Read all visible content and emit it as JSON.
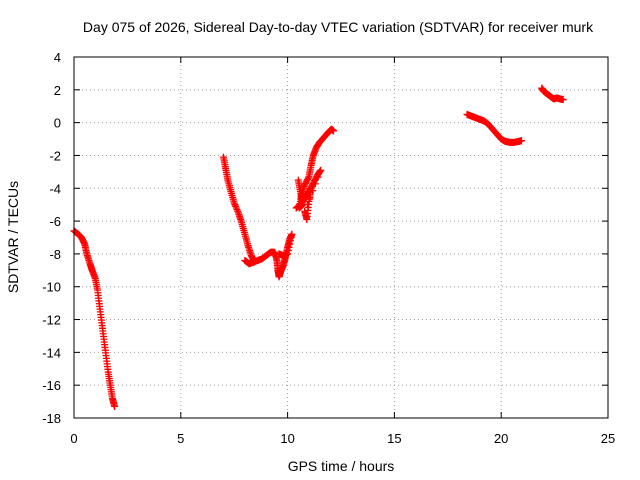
{
  "chart_data": {
    "type": "scatter",
    "title": "Day 075 of 2026, Sidereal Day-to-day VTEC variation (SDTVAR) for receiver murk",
    "xlabel": "GPS time / hours",
    "ylabel": "SDTVAR / TECUs",
    "xlim": [
      0,
      25
    ],
    "ylim": [
      -18,
      4
    ],
    "xticks": [
      0,
      5,
      10,
      15,
      20,
      25
    ],
    "yticks": [
      -18,
      -16,
      -14,
      -12,
      -10,
      -8,
      -6,
      -4,
      -2,
      0,
      2,
      4
    ],
    "grid": true,
    "marker": "plus",
    "color": "#ff0000",
    "segments": [
      {
        "points": [
          [
            0.0,
            -6.6
          ],
          [
            0.2,
            -6.8
          ],
          [
            0.35,
            -7.0
          ],
          [
            0.5,
            -7.4
          ],
          [
            0.6,
            -8.0
          ],
          [
            0.75,
            -8.6
          ],
          [
            0.85,
            -9.0
          ],
          [
            1.0,
            -9.5
          ],
          [
            1.1,
            -10.2
          ],
          [
            1.2,
            -11.2
          ],
          [
            1.3,
            -12.2
          ],
          [
            1.4,
            -13.2
          ],
          [
            1.5,
            -14.2
          ],
          [
            1.6,
            -15.2
          ],
          [
            1.7,
            -16.0
          ],
          [
            1.8,
            -16.8
          ],
          [
            1.9,
            -17.3
          ]
        ]
      },
      {
        "points": [
          [
            7.0,
            -2.1
          ],
          [
            7.1,
            -2.8
          ],
          [
            7.2,
            -3.5
          ],
          [
            7.35,
            -4.2
          ],
          [
            7.5,
            -4.9
          ],
          [
            7.7,
            -5.5
          ],
          [
            7.85,
            -6.1
          ],
          [
            8.0,
            -6.8
          ],
          [
            8.15,
            -7.5
          ],
          [
            8.3,
            -8.1
          ],
          [
            8.45,
            -8.5
          ]
        ]
      },
      {
        "points": [
          [
            8.0,
            -8.4
          ],
          [
            8.2,
            -8.6
          ],
          [
            8.4,
            -8.5
          ],
          [
            8.6,
            -8.4
          ],
          [
            8.8,
            -8.3
          ],
          [
            9.0,
            -8.1
          ],
          [
            9.2,
            -7.9
          ],
          [
            9.4,
            -7.9
          ],
          [
            9.5,
            -8.4
          ],
          [
            9.55,
            -9.0
          ],
          [
            9.6,
            -9.4
          ],
          [
            9.7,
            -9.0
          ],
          [
            9.8,
            -8.7
          ],
          [
            9.9,
            -8.2
          ],
          [
            10.0,
            -7.6
          ],
          [
            10.1,
            -7.1
          ],
          [
            10.2,
            -6.8
          ],
          [
            10.0,
            -8.0
          ],
          [
            9.8,
            -8.1
          ],
          [
            9.6,
            -8.0
          ]
        ]
      },
      {
        "points": [
          [
            10.5,
            -3.5
          ],
          [
            10.6,
            -4.2
          ],
          [
            10.7,
            -5.0
          ],
          [
            10.55,
            -5.2
          ],
          [
            10.65,
            -4.4
          ],
          [
            10.8,
            -3.8
          ],
          [
            11.0,
            -3.3
          ],
          [
            11.1,
            -2.6
          ],
          [
            11.2,
            -2.0
          ],
          [
            11.35,
            -1.5
          ],
          [
            11.5,
            -1.2
          ],
          [
            11.7,
            -0.9
          ],
          [
            11.9,
            -0.6
          ],
          [
            12.05,
            -0.4
          ],
          [
            12.15,
            -0.5
          ]
        ]
      },
      {
        "points": [
          [
            10.4,
            -5.2
          ],
          [
            10.6,
            -5.0
          ],
          [
            10.8,
            -4.6
          ],
          [
            11.0,
            -4.2
          ],
          [
            11.2,
            -3.7
          ],
          [
            11.4,
            -3.2
          ],
          [
            11.55,
            -2.9
          ],
          [
            10.8,
            -5.4
          ],
          [
            10.9,
            -5.9
          ],
          [
            11.0,
            -4.8
          ],
          [
            11.1,
            -4.0
          ]
        ]
      },
      {
        "points": [
          [
            18.4,
            0.5
          ],
          [
            18.6,
            0.4
          ],
          [
            18.8,
            0.3
          ],
          [
            19.0,
            0.2
          ],
          [
            19.2,
            0.1
          ],
          [
            19.4,
            -0.1
          ],
          [
            19.6,
            -0.4
          ],
          [
            19.8,
            -0.7
          ],
          [
            20.0,
            -1.0
          ],
          [
            20.2,
            -1.15
          ],
          [
            20.4,
            -1.2
          ],
          [
            20.6,
            -1.2
          ],
          [
            20.8,
            -1.15
          ],
          [
            20.95,
            -1.1
          ]
        ]
      },
      {
        "points": [
          [
            21.9,
            2.1
          ],
          [
            22.0,
            1.9
          ],
          [
            22.15,
            1.75
          ],
          [
            22.3,
            1.6
          ],
          [
            22.45,
            1.45
          ],
          [
            22.6,
            1.5
          ],
          [
            22.75,
            1.45
          ],
          [
            22.9,
            1.4
          ]
        ]
      }
    ]
  }
}
